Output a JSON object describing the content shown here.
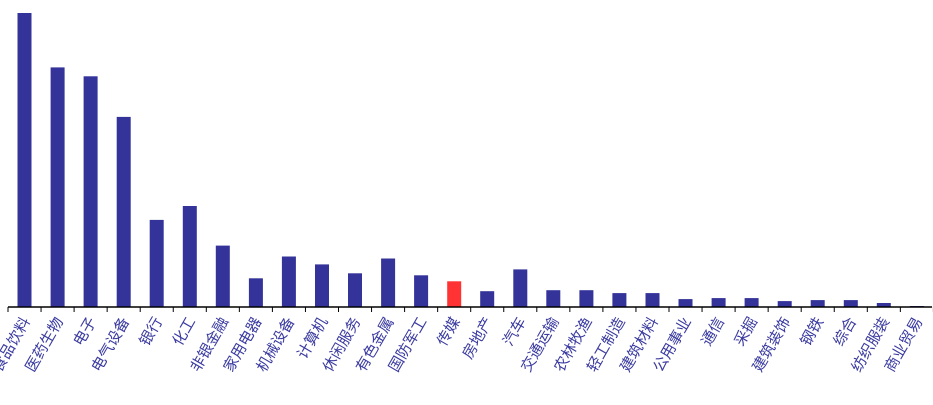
{
  "chart_data": {
    "type": "bar",
    "categories": [
      "食品饮料",
      "医药生物",
      "电子",
      "电气设备",
      "银行",
      "化工",
      "非银金融",
      "家用电器",
      "机械设备",
      "计算机",
      "休闲服务",
      "有色金属",
      "国防军工",
      "传媒",
      "房地产",
      "汽车",
      "交通运输",
      "农林牧渔",
      "轻工制造",
      "建筑材料",
      "公用事业",
      "通信",
      "采掘",
      "建筑装饰",
      "钢铁",
      "综合",
      "纺织服装",
      "商业贸易"
    ],
    "values": [
      297,
      242,
      233,
      192,
      88,
      102,
      62,
      29,
      51,
      43,
      34,
      49,
      32,
      26,
      16,
      38,
      17,
      17,
      14,
      14,
      8,
      9,
      9,
      6,
      7,
      7,
      4,
      1
    ],
    "ylim": [
      0,
      300
    ],
    "highlight_index": 13,
    "colors": {
      "bar": "#333399",
      "highlight": "#ff3333",
      "axis": "#000000",
      "label": "#3a3aa0"
    },
    "grid": false,
    "legend": "none"
  }
}
